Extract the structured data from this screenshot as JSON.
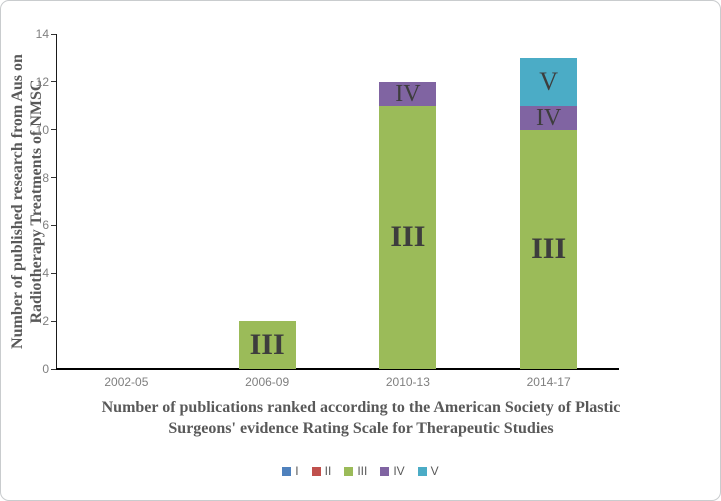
{
  "chart_data": {
    "type": "bar",
    "stacked": true,
    "categories": [
      "2002-05",
      "2006-09",
      "2010-13",
      "2014-17"
    ],
    "series": [
      {
        "name": "I",
        "color": "#4F81BD",
        "values": [
          0,
          0,
          0,
          0
        ]
      },
      {
        "name": "II",
        "color": "#C0504D",
        "values": [
          0,
          0,
          0,
          0
        ]
      },
      {
        "name": "III",
        "color": "#9BBB59",
        "values": [
          0,
          2,
          11,
          10
        ]
      },
      {
        "name": "IV",
        "color": "#8064A2",
        "values": [
          0,
          0,
          1,
          1
        ]
      },
      {
        "name": "V",
        "color": "#4BACC6",
        "values": [
          0,
          0,
          0,
          2
        ]
      }
    ],
    "ylim": [
      0,
      14
    ],
    "yticks": [
      0,
      2,
      4,
      6,
      8,
      10,
      12,
      14
    ],
    "ylabel": "Number of published research from Aus on Radiotherapy Treatments of NMSC",
    "ylabel_lines": [
      "Number of published research from Aus on",
      "Radiotherapy Treatments of NMSC"
    ],
    "xlabel": "Number of publications ranked according to the American Society of Plastic Surgeons' evidence Rating Scale for Therapeutic Studies",
    "xlabel_lines": [
      "Number of publications ranked according to the American Society of Plastic",
      "Surgeons' evidence Rating Scale for Therapeutic Studies"
    ],
    "legend_position": "bottom",
    "grid": false,
    "segment_labels_shown": true
  },
  "colors": {
    "axis_line": "#000000",
    "tick_label": "#7f7f7f",
    "axis_title": "#595959",
    "segment_label": "#3d3d3d",
    "legend_text": "#595959",
    "frame_border": "#c9ccce"
  }
}
